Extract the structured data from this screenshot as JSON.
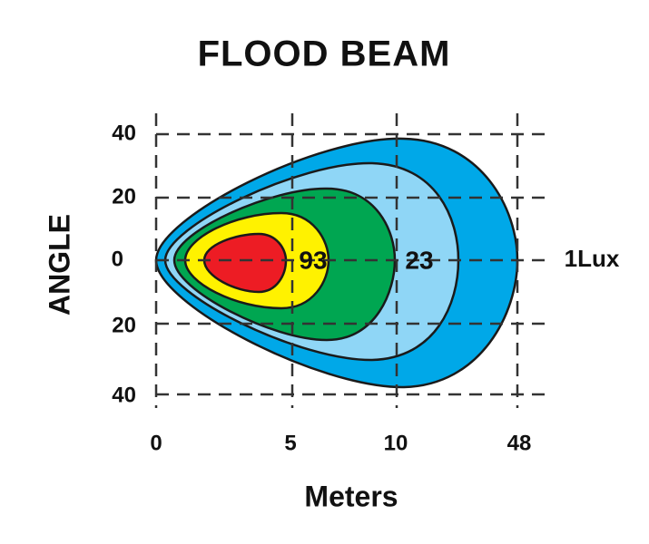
{
  "title": "FLOOD  BEAM",
  "y_axis": {
    "label": "ANGLE",
    "ticks": [
      "40",
      "20",
      "0",
      "20",
      "40"
    ]
  },
  "x_axis": {
    "label": "Meters",
    "ticks": [
      "0",
      "5",
      "10",
      "48"
    ]
  },
  "contour_labels": [
    "93",
    "23",
    "1Lux"
  ]
}
